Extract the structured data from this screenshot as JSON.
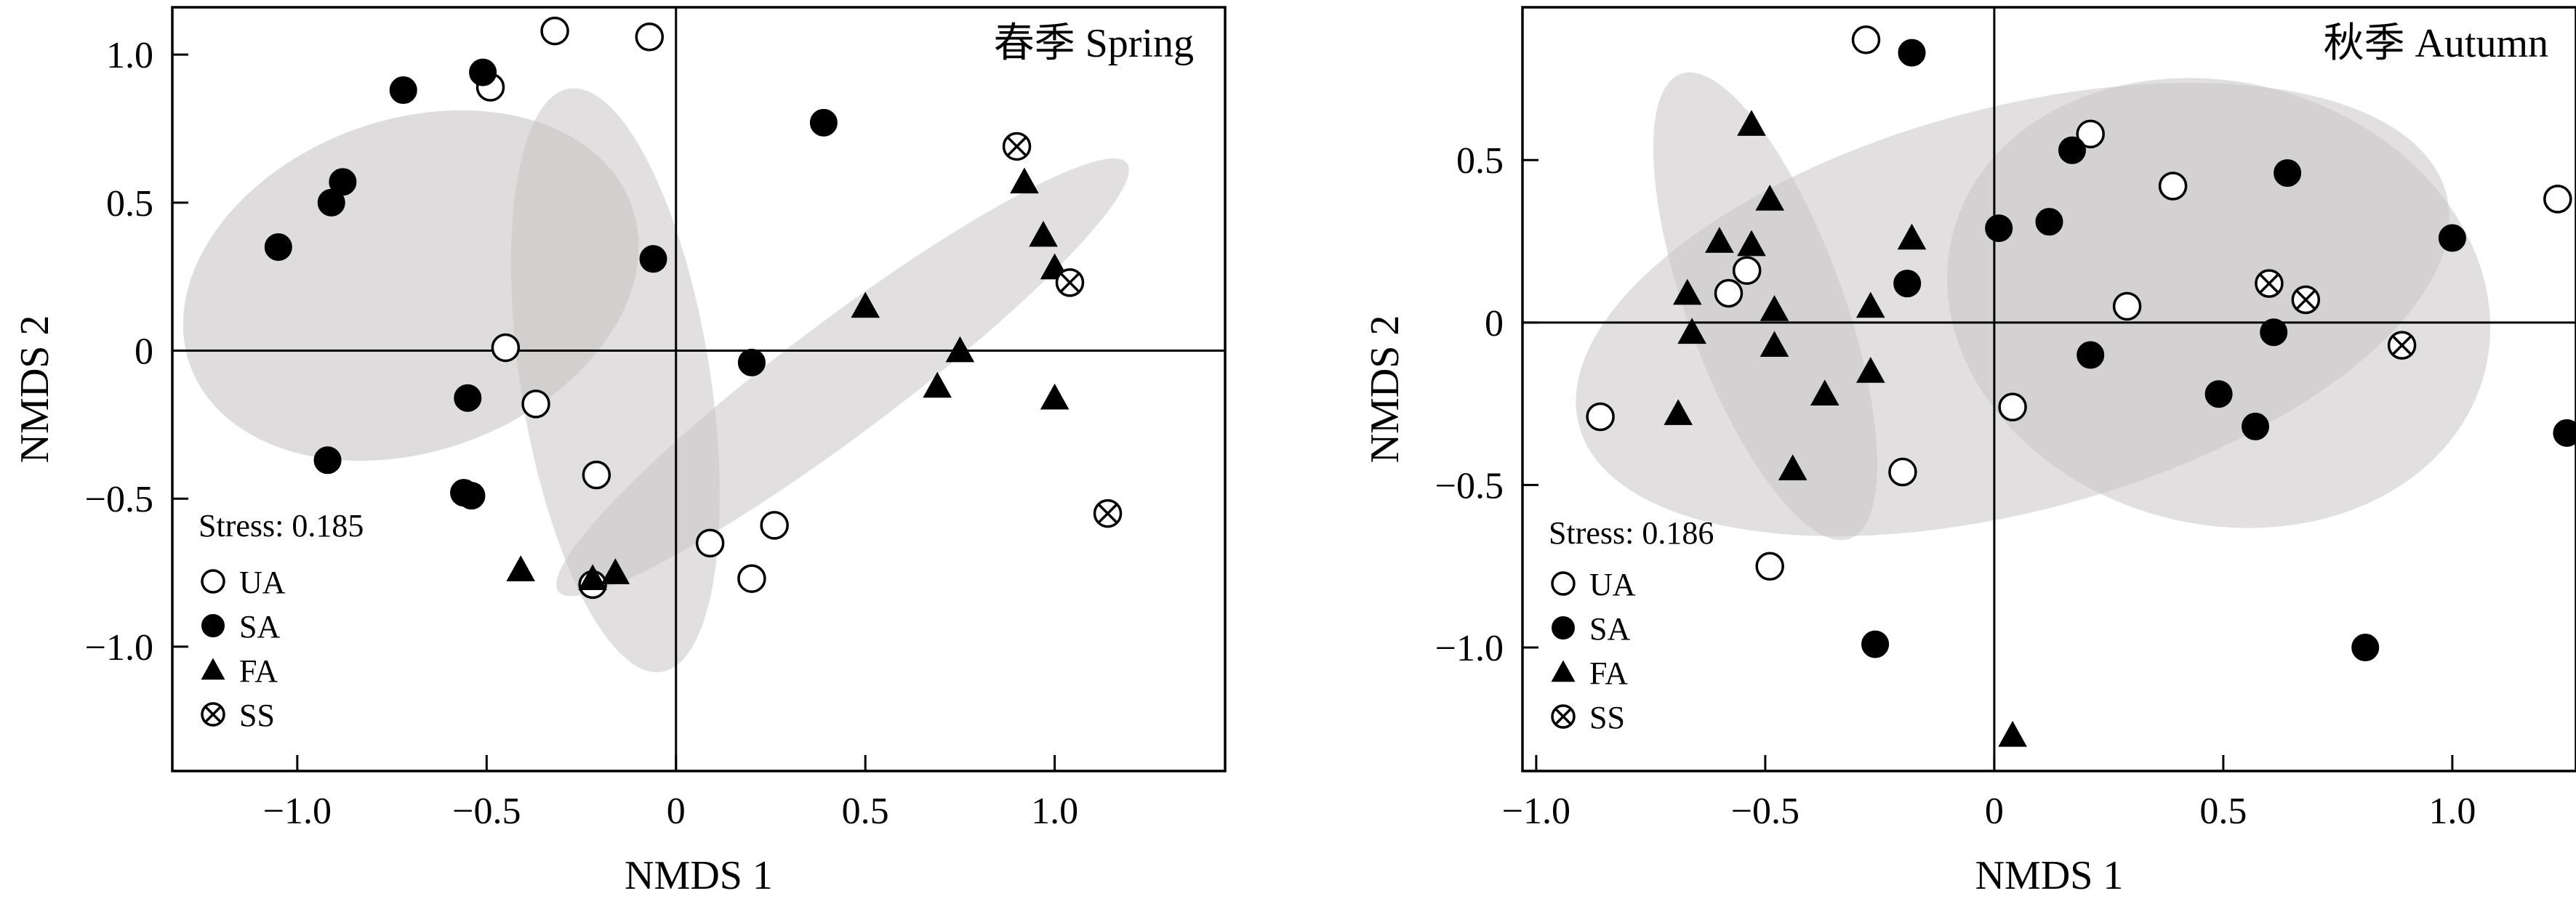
{
  "figure": {
    "legend_items": [
      {
        "key": "UA",
        "label": "UA",
        "marker": "open-circle"
      },
      {
        "key": "SA",
        "label": "SA",
        "marker": "filled-circle"
      },
      {
        "key": "FA",
        "label": "FA",
        "marker": "filled-triangle"
      },
      {
        "key": "SS",
        "label": "SS",
        "marker": "crossed-circle"
      }
    ],
    "colors": {
      "ellipse_fill": "#c8c4c4",
      "marker": "#000000",
      "axis": "#000000"
    }
  },
  "chart_data": [
    {
      "type": "scatter",
      "title": "春季 Spring",
      "xlabel": "NMDS 1",
      "ylabel": "NMDS 2",
      "stress_label": "Stress: 0.185",
      "xlim": [
        -1.33,
        1.45
      ],
      "ylim": [
        -1.42,
        1.16
      ],
      "xticks": [
        -1.0,
        -0.5,
        0,
        0.5,
        1.0
      ],
      "xtick_labels": [
        "−1.0",
        "−0.5",
        "0",
        "0.5",
        "1.0"
      ],
      "yticks": [
        -1.0,
        -0.5,
        0,
        0.5,
        1.0
      ],
      "ytick_labels": [
        "−1.0",
        "−0.5",
        "0",
        "0.5",
        "1.0"
      ],
      "legend_position": "bottom-left",
      "reference_lines": {
        "x": 0,
        "y": 0
      },
      "series": [
        {
          "key": "UA",
          "points": [
            [
              -0.32,
              1.08
            ],
            [
              -0.07,
              1.06
            ],
            [
              -0.49,
              0.89
            ],
            [
              -0.45,
              0.01
            ],
            [
              -0.37,
              -0.18
            ],
            [
              -0.21,
              -0.42
            ],
            [
              -0.22,
              -0.79
            ],
            [
              0.09,
              -0.65
            ],
            [
              0.26,
              -0.59
            ],
            [
              0.2,
              -0.77
            ]
          ]
        },
        {
          "key": "SA",
          "points": [
            [
              -0.51,
              0.94
            ],
            [
              -0.72,
              0.88
            ],
            [
              -0.88,
              0.57
            ],
            [
              -0.91,
              0.5
            ],
            [
              -1.05,
              0.35
            ],
            [
              -0.06,
              0.31
            ],
            [
              -0.55,
              -0.16
            ],
            [
              -0.92,
              -0.37
            ],
            [
              -0.56,
              -0.48
            ],
            [
              -0.54,
              -0.49
            ],
            [
              0.39,
              0.77
            ],
            [
              0.2,
              -0.04
            ]
          ]
        },
        {
          "key": "FA",
          "points": [
            [
              0.92,
              0.57
            ],
            [
              0.97,
              0.39
            ],
            [
              1.0,
              0.28
            ],
            [
              0.5,
              0.15
            ],
            [
              0.75,
              0.0
            ],
            [
              0.69,
              -0.12
            ],
            [
              1.0,
              -0.16
            ],
            [
              -0.41,
              -0.74
            ],
            [
              -0.22,
              -0.77
            ],
            [
              -0.16,
              -0.75
            ]
          ]
        },
        {
          "key": "SS",
          "points": [
            [
              0.9,
              0.69
            ],
            [
              1.04,
              0.23
            ],
            [
              1.14,
              -0.55
            ]
          ]
        }
      ],
      "ellipses": [
        {
          "group": "SA",
          "center": [
            -0.7,
            0.22
          ],
          "rx": 0.62,
          "ry": 0.56,
          "angle_deg": 20,
          "opacity": 0.6
        },
        {
          "group": "UA",
          "center": [
            -0.16,
            -0.1
          ],
          "rx": 0.78,
          "ry": 0.32,
          "angle_deg": -81,
          "opacity": 0.55
        },
        {
          "group": "FA",
          "center": [
            0.44,
            -0.09
          ],
          "rx": 0.94,
          "ry": 0.19,
          "angle_deg": 37,
          "opacity": 0.55
        }
      ]
    },
    {
      "type": "scatter",
      "title": "秋季 Autumn",
      "xlabel": "NMDS 1",
      "ylabel": "NMDS 2",
      "stress_label": "Stress: 0.186",
      "xlim": [
        -1.03,
        1.27
      ],
      "ylim": [
        -1.38,
        0.97
      ],
      "xticks": [
        -1.0,
        -0.5,
        0,
        0.5,
        1.0
      ],
      "xtick_labels": [
        "−1.0",
        "−0.5",
        "0",
        "0.5",
        "1.0"
      ],
      "yticks": [
        -1.0,
        -0.5,
        0,
        0.5
      ],
      "ytick_labels": [
        "−1.0",
        "−0.5",
        "0",
        "0.5"
      ],
      "legend_position": "bottom-left",
      "reference_lines": {
        "x": 0,
        "y": 0
      },
      "series": [
        {
          "key": "UA",
          "points": [
            [
              -0.28,
              0.87
            ],
            [
              0.21,
              0.58
            ],
            [
              0.39,
              0.42
            ],
            [
              -0.54,
              0.16
            ],
            [
              -0.58,
              0.09
            ],
            [
              0.29,
              0.05
            ],
            [
              0.04,
              -0.26
            ],
            [
              -0.86,
              -0.29
            ],
            [
              -0.2,
              -0.46
            ],
            [
              -0.49,
              -0.75
            ],
            [
              1.23,
              0.38
            ]
          ]
        },
        {
          "key": "SA",
          "points": [
            [
              -0.18,
              0.83
            ],
            [
              0.17,
              0.53
            ],
            [
              0.64,
              0.46
            ],
            [
              0.12,
              0.31
            ],
            [
              0.01,
              0.29
            ],
            [
              1.0,
              0.26
            ],
            [
              -0.19,
              0.12
            ],
            [
              0.61,
              -0.03
            ],
            [
              0.21,
              -0.1
            ],
            [
              0.49,
              -0.22
            ],
            [
              0.57,
              -0.32
            ],
            [
              1.25,
              -0.34
            ],
            [
              -0.26,
              -0.99
            ],
            [
              0.81,
              -1.0
            ]
          ]
        },
        {
          "key": "FA",
          "points": [
            [
              -0.53,
              0.61
            ],
            [
              -0.49,
              0.38
            ],
            [
              -0.6,
              0.25
            ],
            [
              -0.53,
              0.24
            ],
            [
              -0.18,
              0.26
            ],
            [
              -0.67,
              0.09
            ],
            [
              -0.48,
              0.04
            ],
            [
              -0.27,
              0.05
            ],
            [
              -0.66,
              -0.03
            ],
            [
              -0.48,
              -0.07
            ],
            [
              -0.27,
              -0.15
            ],
            [
              -0.37,
              -0.22
            ],
            [
              -0.69,
              -0.28
            ],
            [
              -0.44,
              -0.45
            ],
            [
              0.04,
              -1.27
            ]
          ]
        },
        {
          "key": "SS",
          "points": [
            [
              0.6,
              0.12
            ],
            [
              0.68,
              0.07
            ],
            [
              0.89,
              -0.07
            ]
          ]
        }
      ],
      "ellipses": [
        {
          "group": "UA",
          "center": [
            0.04,
            0.04
          ],
          "rx": 0.98,
          "ry": 0.62,
          "angle_deg": 15,
          "opacity": 0.55
        },
        {
          "group": "SA",
          "center": [
            0.49,
            0.06
          ],
          "rx": 0.6,
          "ry": 0.68,
          "angle_deg": -15,
          "opacity": 0.55
        },
        {
          "group": "FA",
          "center": [
            -0.5,
            0.05
          ],
          "rx": 0.54,
          "ry": 0.24,
          "angle_deg": -70,
          "opacity": 0.55
        }
      ]
    }
  ]
}
